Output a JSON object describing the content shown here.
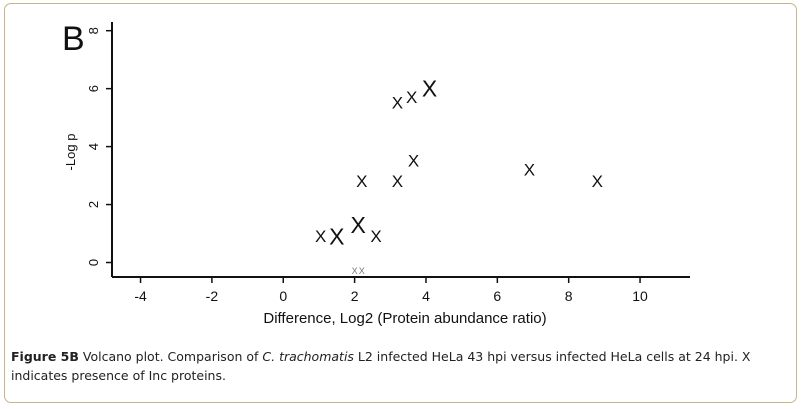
{
  "panel_label": "B",
  "chart_data": {
    "type": "scatter",
    "title": "",
    "xlabel": "Difference, Log2 (Protein abundance ratio)",
    "ylabel": "-Log p",
    "xlim": [
      -4.8,
      11.4
    ],
    "ylim": [
      -0.5,
      8.3
    ],
    "x_ticks": [
      -4,
      -2,
      0,
      2,
      4,
      6,
      8,
      10
    ],
    "y_ticks": [
      0,
      2,
      4,
      6,
      8
    ],
    "marker": "X",
    "grid": false,
    "points": [
      {
        "x": 4.1,
        "y": 6.0,
        "size": "large"
      },
      {
        "x": 3.6,
        "y": 5.7,
        "size": "medium"
      },
      {
        "x": 3.2,
        "y": 5.5,
        "size": "medium"
      },
      {
        "x": 3.65,
        "y": 3.5,
        "size": "medium"
      },
      {
        "x": 6.9,
        "y": 3.2,
        "size": "medium"
      },
      {
        "x": 2.2,
        "y": 2.8,
        "size": "medium"
      },
      {
        "x": 3.2,
        "y": 2.8,
        "size": "medium"
      },
      {
        "x": 8.8,
        "y": 2.8,
        "size": "medium"
      },
      {
        "x": 2.1,
        "y": 1.3,
        "size": "large"
      },
      {
        "x": 1.5,
        "y": 0.9,
        "size": "large"
      },
      {
        "x": 1.05,
        "y": 0.9,
        "size": "medium"
      },
      {
        "x": 2.6,
        "y": 0.9,
        "size": "medium"
      },
      {
        "x": 2.0,
        "y": -0.3,
        "size": "tiny"
      },
      {
        "x": 2.2,
        "y": -0.3,
        "size": "tiny"
      }
    ]
  },
  "caption": {
    "lead": "Figure 5B",
    "text_before": " Volcano plot. Comparison of ",
    "organism": "C. trachomatis",
    "text_after": " L2 infected HeLa 43 hpi versus infected HeLa cells at 24 hpi. X indicates presence of Inc proteins."
  },
  "colors": {
    "frame": "#c9b48a",
    "ink": "#111111"
  }
}
